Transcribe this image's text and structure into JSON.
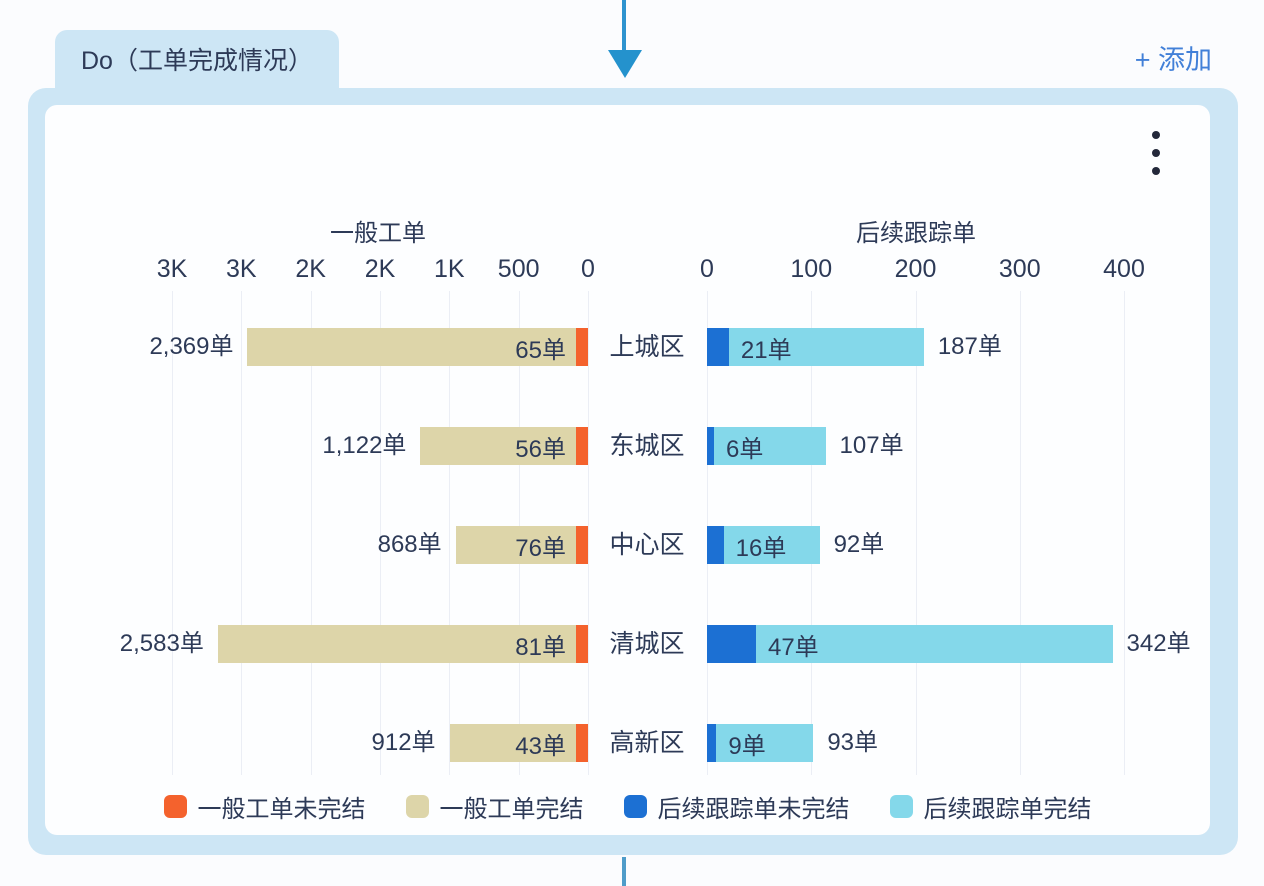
{
  "tab": {
    "title": "Do（工单完成情况）"
  },
  "add_button": {
    "label": "+ 添加"
  },
  "menu": {
    "icon": "kebab-menu-icon"
  },
  "colors": {
    "panel_blue": "#cde6f5",
    "arrow_blue": "#2e93cf",
    "link_blue": "#4280d8",
    "text_dark": "#2d3a57",
    "general_open_orange": "#f4622d",
    "general_done_tan": "#ddd5a9",
    "follow_open_blue": "#1c70d3",
    "follow_done_cyan": "#84d8ea",
    "gridline": "#ebeef5"
  },
  "chart_data": {
    "type": "bar",
    "orientation": "horizontal-bidirectional",
    "categories": [
      "上城区",
      "东城区",
      "中心区",
      "清城区",
      "高新区"
    ],
    "left": {
      "title": "一般工单",
      "axis_ticks": [
        "3K",
        "3K",
        "2K",
        "2K",
        "1K",
        "500",
        "0"
      ],
      "axis_max": 3000,
      "axis_direction": "right-to-left",
      "grid": true,
      "series": [
        {
          "name": "一般工单未完结",
          "color": "#f4622d",
          "values": [
            65,
            56,
            76,
            81,
            43
          ]
        },
        {
          "name": "一般工单完结",
          "color": "#ddd5a9",
          "values": [
            2369,
            1122,
            868,
            2583,
            912
          ]
        }
      ],
      "outside_labels": [
        "2,369单",
        "1,122单",
        "868单",
        "2,583单",
        "912单"
      ],
      "inside_labels": [
        "65单",
        "56单",
        "76单",
        "81单",
        "43单"
      ]
    },
    "right": {
      "title": "后续跟踪单",
      "axis_ticks": [
        "0",
        "100",
        "200",
        "300",
        "400"
      ],
      "axis_max": 400,
      "axis_direction": "left-to-right",
      "grid": true,
      "series": [
        {
          "name": "后续跟踪单未完结",
          "color": "#1c70d3",
          "values": [
            21,
            6,
            16,
            47,
            9
          ]
        },
        {
          "name": "后续跟踪单完结",
          "color": "#84d8ea",
          "values": [
            187,
            107,
            92,
            342,
            93
          ]
        }
      ],
      "inside_labels": [
        "21单",
        "6单",
        "16单",
        "47单",
        "9单"
      ],
      "outside_labels": [
        "187单",
        "107单",
        "92单",
        "342单",
        "93单"
      ]
    },
    "legend": [
      {
        "label": "一般工单未完结",
        "color": "#f4622d"
      },
      {
        "label": "一般工单完结",
        "color": "#ddd5a9"
      },
      {
        "label": "后续跟踪单未完结",
        "color": "#1c70d3"
      },
      {
        "label": "后续跟踪单完结",
        "color": "#84d8ea"
      }
    ],
    "legend_position": "bottom"
  }
}
